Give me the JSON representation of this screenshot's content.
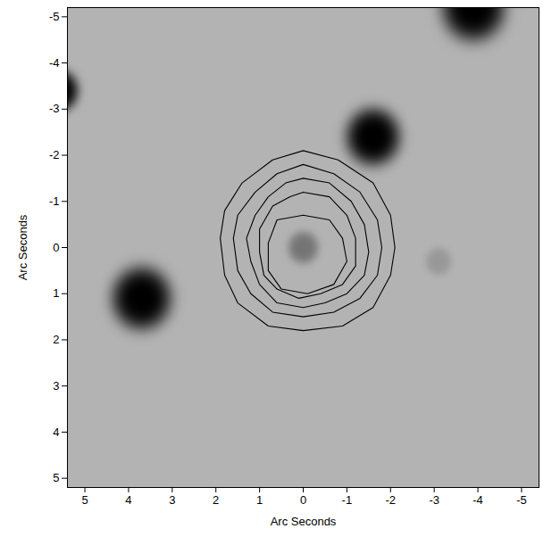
{
  "chart_data": {
    "type": "image",
    "xlabel": "Arc Seconds",
    "ylabel": "Arc Seconds",
    "xlim": [
      5.4,
      -5.4
    ],
    "ylim": [
      5.2,
      -5.2
    ],
    "xticks": [
      5,
      4,
      3,
      2,
      1,
      0,
      -1,
      -2,
      -3,
      -4,
      -5
    ],
    "yticks": [
      -5,
      -4,
      -3,
      -2,
      -1,
      0,
      1,
      2,
      3,
      4,
      5
    ],
    "sources": [
      {
        "x": -1.6,
        "y": -2.4,
        "peak": 1,
        "size": 0.62
      },
      {
        "x": 3.7,
        "y": 1.1,
        "peak": 1,
        "size": 0.68
      },
      {
        "x": -3.9,
        "y": -5.2,
        "peak": 1,
        "size": 0.72
      },
      {
        "x": 5.6,
        "y": -3.4,
        "peak": 1,
        "size": 0.45
      },
      {
        "x": 0.0,
        "y": 0.0,
        "peak": 0.35,
        "size": 0.35
      },
      {
        "x": -3.1,
        "y": 0.3,
        "peak": 0.15,
        "size": 0.3
      }
    ],
    "contours": [
      [
        [
          0,
          -2.1
        ],
        [
          -0.8,
          -1.9
        ],
        [
          -1.6,
          -1.4
        ],
        [
          -2.0,
          -0.7
        ],
        [
          -2.1,
          0.0
        ],
        [
          -2.0,
          0.6
        ],
        [
          -1.6,
          1.3
        ],
        [
          -0.9,
          1.7
        ],
        [
          0,
          1.8
        ],
        [
          0.8,
          1.7
        ],
        [
          1.5,
          1.2
        ],
        [
          1.8,
          0.6
        ],
        [
          1.9,
          -0.2
        ],
        [
          1.8,
          -0.8
        ],
        [
          1.4,
          -1.4
        ],
        [
          0.7,
          -1.9
        ],
        [
          0,
          -2.1
        ]
      ],
      [
        [
          0,
          -1.8
        ],
        [
          -0.7,
          -1.6
        ],
        [
          -1.3,
          -1.2
        ],
        [
          -1.7,
          -0.6
        ],
        [
          -1.8,
          0.0
        ],
        [
          -1.7,
          0.6
        ],
        [
          -1.3,
          1.1
        ],
        [
          -0.7,
          1.4
        ],
        [
          0,
          1.5
        ],
        [
          0.7,
          1.4
        ],
        [
          1.2,
          1.0
        ],
        [
          1.5,
          0.5
        ],
        [
          1.6,
          -0.2
        ],
        [
          1.5,
          -0.7
        ],
        [
          1.1,
          -1.2
        ],
        [
          0.6,
          -1.6
        ],
        [
          0,
          -1.8
        ]
      ],
      [
        [
          0,
          -1.5
        ],
        [
          -0.6,
          -1.4
        ],
        [
          -1.1,
          -1.0
        ],
        [
          -1.4,
          -0.5
        ],
        [
          -1.5,
          0.1
        ],
        [
          -1.4,
          0.6
        ],
        [
          -1.0,
          1.0
        ],
        [
          -0.5,
          1.2
        ],
        [
          0,
          1.3
        ],
        [
          0.6,
          1.2
        ],
        [
          1.0,
          0.8
        ],
        [
          1.2,
          0.3
        ],
        [
          1.3,
          -0.2
        ],
        [
          1.1,
          -0.7
        ],
        [
          0.8,
          -1.1
        ],
        [
          0.4,
          -1.4
        ],
        [
          0,
          -1.5
        ]
      ],
      [
        [
          0,
          -1.2
        ],
        [
          -0.6,
          -1.1
        ],
        [
          -1.0,
          -0.7
        ],
        [
          -1.2,
          -0.2
        ],
        [
          -1.2,
          0.4
        ],
        [
          -0.9,
          0.8
        ],
        [
          -0.4,
          1.0
        ],
        [
          0.1,
          1.1
        ],
        [
          0.6,
          0.9
        ],
        [
          0.9,
          0.6
        ],
        [
          1.0,
          0.1
        ],
        [
          1.0,
          -0.4
        ],
        [
          0.7,
          -0.9
        ],
        [
          0.3,
          -1.1
        ],
        [
          0,
          -1.2
        ]
      ],
      [
        [
          0,
          -0.7
        ],
        [
          -0.6,
          -0.6
        ],
        [
          -0.9,
          -0.2
        ],
        [
          -1.0,
          0.3
        ],
        [
          -0.7,
          0.8
        ],
        [
          -0.1,
          1.0
        ],
        [
          0.5,
          0.9
        ],
        [
          0.8,
          0.5
        ],
        [
          0.8,
          -0.1
        ],
        [
          0.6,
          -0.6
        ],
        [
          0,
          -0.7
        ]
      ]
    ]
  }
}
